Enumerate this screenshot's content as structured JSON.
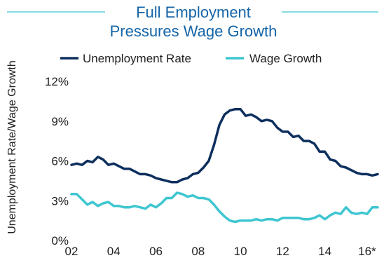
{
  "chart_data": {
    "type": "line",
    "title": [
      "Full Employment",
      "Pressures Wage Growth"
    ],
    "ylabel": "Unemployment Rate/Wage Growth",
    "xlabel": "",
    "x_ticks": [
      "02",
      "04",
      "06",
      "08",
      "10",
      "12",
      "14",
      "16*"
    ],
    "y_ticks": [
      "0%",
      "3%",
      "6%",
      "9%",
      "12%"
    ],
    "ylim": [
      0,
      12
    ],
    "xlim": [
      2002.0,
      2016.7
    ],
    "grid": false,
    "legend_position": "top",
    "series": [
      {
        "name": "Unemployment Rate",
        "color": "#0d2f5e",
        "x": [
          2002.0,
          2002.25,
          2002.5,
          2002.75,
          2003.0,
          2003.25,
          2003.5,
          2003.75,
          2004.0,
          2004.25,
          2004.5,
          2004.75,
          2005.0,
          2005.25,
          2005.5,
          2005.75,
          2006.0,
          2006.25,
          2006.5,
          2006.75,
          2007.0,
          2007.25,
          2007.5,
          2007.75,
          2008.0,
          2008.25,
          2008.5,
          2008.75,
          2009.0,
          2009.25,
          2009.5,
          2009.75,
          2010.0,
          2010.25,
          2010.5,
          2010.75,
          2011.0,
          2011.25,
          2011.5,
          2011.75,
          2012.0,
          2012.25,
          2012.5,
          2012.75,
          2013.0,
          2013.25,
          2013.5,
          2013.75,
          2014.0,
          2014.25,
          2014.5,
          2014.75,
          2015.0,
          2015.25,
          2015.5,
          2015.75,
          2016.0,
          2016.25,
          2016.5
        ],
        "values": [
          5.7,
          5.8,
          5.7,
          6.0,
          5.9,
          6.3,
          6.1,
          5.7,
          5.8,
          5.6,
          5.4,
          5.4,
          5.2,
          5.0,
          5.0,
          4.9,
          4.7,
          4.6,
          4.5,
          4.4,
          4.4,
          4.6,
          4.7,
          5.0,
          5.1,
          5.5,
          6.0,
          7.2,
          8.7,
          9.5,
          9.8,
          9.9,
          9.9,
          9.4,
          9.5,
          9.3,
          9.0,
          9.1,
          9.0,
          8.5,
          8.2,
          8.2,
          7.8,
          7.9,
          7.5,
          7.5,
          7.3,
          6.7,
          6.7,
          6.1,
          6.0,
          5.6,
          5.5,
          5.3,
          5.1,
          5.0,
          5.0,
          4.9,
          5.0
        ]
      },
      {
        "name": "Wage Growth",
        "color": "#3ec6d0",
        "x": [
          2002.0,
          2002.25,
          2002.5,
          2002.75,
          2003.0,
          2003.25,
          2003.5,
          2003.75,
          2004.0,
          2004.25,
          2004.5,
          2004.75,
          2005.0,
          2005.25,
          2005.5,
          2005.75,
          2006.0,
          2006.25,
          2006.5,
          2006.75,
          2007.0,
          2007.25,
          2007.5,
          2007.75,
          2008.0,
          2008.25,
          2008.5,
          2008.75,
          2009.0,
          2009.25,
          2009.5,
          2009.75,
          2010.0,
          2010.25,
          2010.5,
          2010.75,
          2011.0,
          2011.25,
          2011.5,
          2011.75,
          2012.0,
          2012.25,
          2012.5,
          2012.75,
          2013.0,
          2013.25,
          2013.5,
          2013.75,
          2014.0,
          2014.25,
          2014.5,
          2014.75,
          2015.0,
          2015.25,
          2015.5,
          2015.75,
          2016.0,
          2016.25,
          2016.5
        ],
        "values": [
          3.5,
          3.5,
          3.1,
          2.7,
          2.9,
          2.6,
          2.8,
          2.9,
          2.6,
          2.6,
          2.5,
          2.5,
          2.6,
          2.5,
          2.4,
          2.7,
          2.5,
          2.8,
          3.2,
          3.2,
          3.6,
          3.5,
          3.3,
          3.4,
          3.2,
          3.2,
          3.1,
          2.7,
          2.2,
          1.8,
          1.5,
          1.4,
          1.5,
          1.5,
          1.5,
          1.6,
          1.5,
          1.6,
          1.6,
          1.5,
          1.7,
          1.7,
          1.7,
          1.7,
          1.6,
          1.6,
          1.7,
          1.9,
          1.6,
          1.9,
          2.1,
          2.0,
          2.5,
          2.1,
          2.0,
          2.1,
          2.0,
          2.5,
          2.5
        ]
      }
    ]
  }
}
